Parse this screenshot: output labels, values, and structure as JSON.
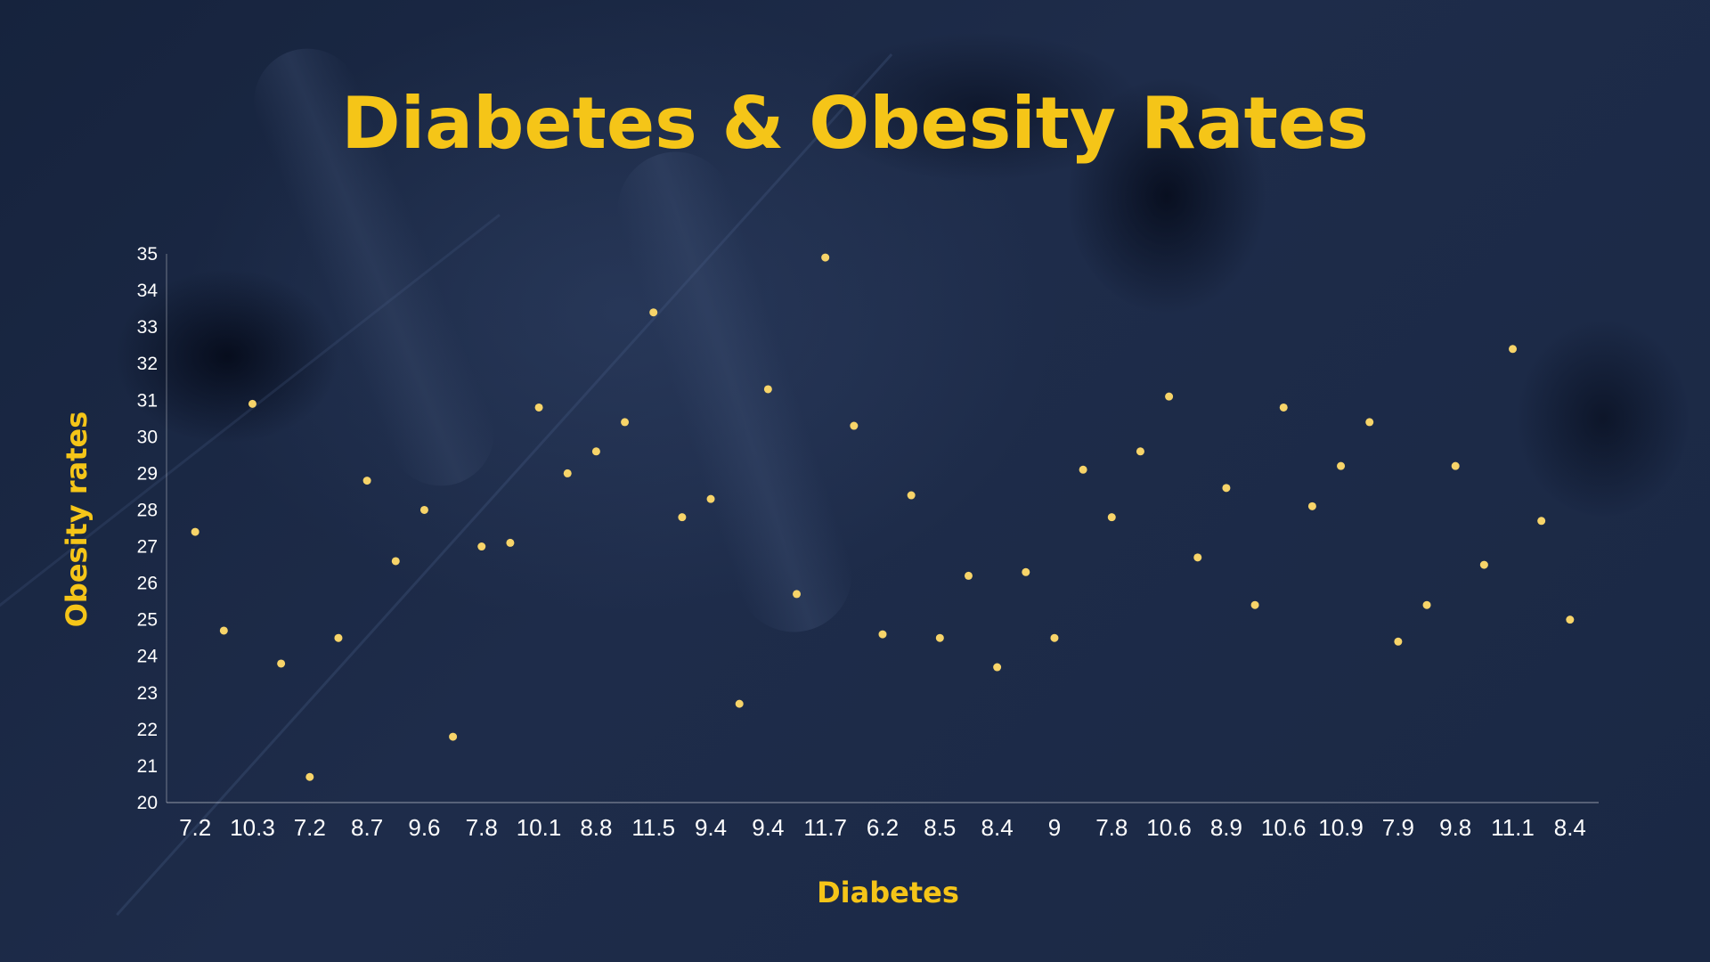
{
  "chart_data": {
    "type": "scatter",
    "title": "Diabetes & Obesity Rates",
    "xlabel": "Diabetes",
    "ylabel": "Obesity rates",
    "ylim": [
      20,
      35
    ],
    "yticks": [
      20,
      21,
      22,
      23,
      24,
      25,
      26,
      27,
      28,
      29,
      30,
      31,
      32,
      33,
      34,
      35
    ],
    "x_tick_labels": [
      "7.2",
      "10.3",
      "7.2",
      "8.7",
      "9.6",
      "7.8",
      "10.1",
      "8.8",
      "11.5",
      "9.4",
      "9.4",
      "11.7",
      "6.2",
      "8.5",
      "8.4",
      "9",
      "7.8",
      "10.6",
      "8.9",
      "10.6",
      "10.9",
      "7.9",
      "9.8",
      "11.1",
      "8.4"
    ],
    "point_color": "#f7d469",
    "values": [
      27.4,
      24.7,
      30.9,
      23.8,
      20.7,
      24.5,
      28.8,
      26.6,
      28.0,
      21.8,
      27.0,
      27.1,
      30.8,
      29.0,
      29.6,
      30.4,
      33.4,
      27.8,
      28.3,
      22.7,
      31.3,
      25.7,
      34.9,
      30.3,
      24.6,
      28.4,
      24.5,
      26.2,
      23.7,
      26.3,
      24.5,
      29.1,
      27.8,
      29.6,
      31.1,
      26.7,
      28.6,
      25.4,
      30.8,
      28.1,
      29.2,
      30.4,
      24.4,
      25.4,
      29.2,
      26.5,
      32.4,
      27.7,
      25.0
    ]
  }
}
